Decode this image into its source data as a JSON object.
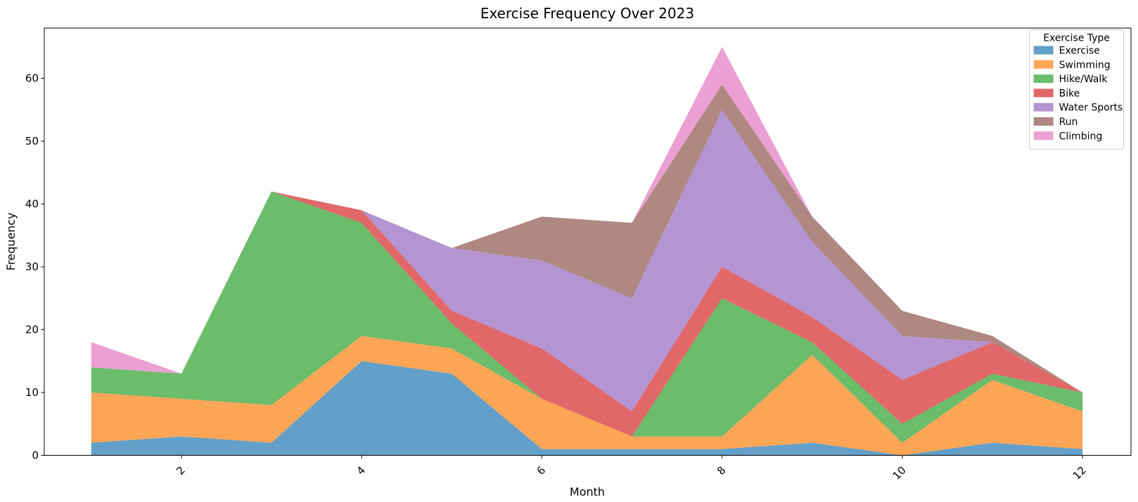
{
  "chart_data": {
    "type": "area",
    "stacked": true,
    "title": "Exercise Frequency Over 2023",
    "xlabel": "Month",
    "ylabel": "Frequency",
    "x": [
      1,
      2,
      3,
      4,
      5,
      6,
      7,
      8,
      9,
      10,
      11,
      12
    ],
    "series": [
      {
        "name": "Exercise",
        "color": "#1f77b4",
        "values": [
          2,
          3,
          2,
          15,
          13,
          1,
          1,
          1,
          2,
          0,
          2,
          1
        ]
      },
      {
        "name": "Swimming",
        "color": "#ff7f0e",
        "values": [
          8,
          6,
          6,
          4,
          4,
          8,
          2,
          2,
          14,
          2,
          10,
          6
        ]
      },
      {
        "name": "Hike/Walk",
        "color": "#2ca02c",
        "values": [
          4,
          4,
          34,
          18,
          4,
          0,
          0,
          22,
          2,
          3,
          1,
          3
        ]
      },
      {
        "name": "Bike",
        "color": "#d62728",
        "values": [
          0,
          0,
          0,
          2,
          2,
          8,
          4,
          5,
          4,
          7,
          5,
          0
        ]
      },
      {
        "name": "Water Sports",
        "color": "#9467bd",
        "values": [
          0,
          0,
          0,
          0,
          10,
          14,
          18,
          25,
          12,
          7,
          0,
          0
        ]
      },
      {
        "name": "Run",
        "color": "#8c564b",
        "values": [
          0,
          0,
          0,
          0,
          0,
          7,
          12,
          4,
          4,
          4,
          1,
          0
        ]
      },
      {
        "name": "Climbing",
        "color": "#e377c2",
        "values": [
          4,
          0,
          0,
          0,
          0,
          0,
          0,
          6,
          0,
          0,
          0,
          0
        ]
      }
    ],
    "fill_opacity": 0.7,
    "legend": {
      "title": "Exercise Type",
      "position": "upper right"
    },
    "xticks": [
      "2",
      "4",
      "6",
      "8",
      "10",
      "12"
    ],
    "xtick_values": [
      2,
      4,
      6,
      8,
      10,
      12
    ],
    "xtick_rotation": 45,
    "yticks": [
      "0",
      "10",
      "20",
      "30",
      "40",
      "50",
      "60"
    ],
    "ytick_values": [
      0,
      10,
      20,
      30,
      40,
      50,
      60
    ],
    "ylim": [
      0,
      68
    ],
    "grid": false,
    "colors": {
      "axis": "#000000",
      "legend_border": "#cccccc",
      "background": "#ffffff"
    }
  }
}
